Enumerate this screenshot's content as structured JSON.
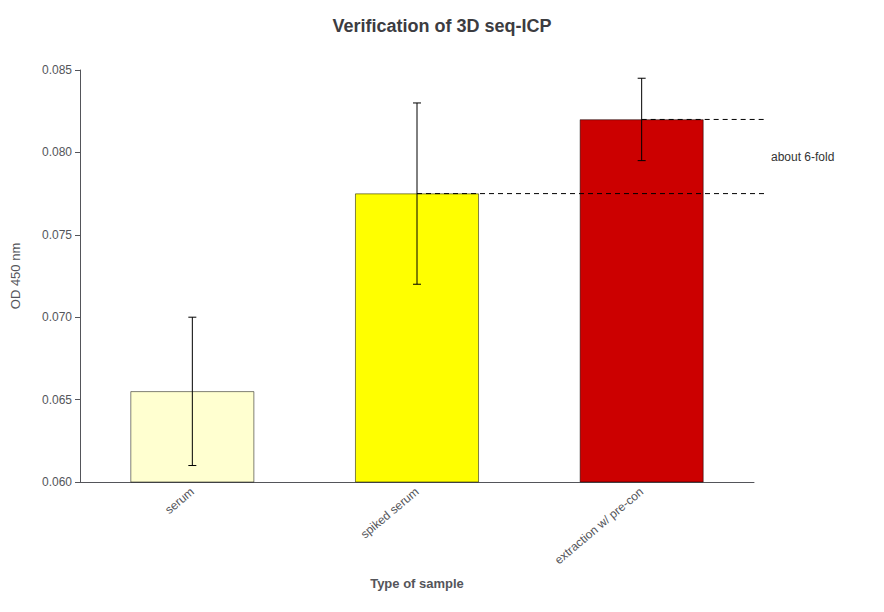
{
  "chart_data": {
    "type": "bar",
    "title": "Verification of 3D seq-ICP",
    "categories": [
      "serum",
      "spiked serum",
      "extraction w/ pre-con"
    ],
    "values": [
      0.0655,
      0.0775,
      0.082
    ],
    "errors": [
      0.0045,
      0.0055,
      0.0025
    ],
    "colors": [
      "#ffffd0",
      "#ffff00",
      "#cc0000"
    ],
    "xlabel": "Type of sample",
    "ylabel": "OD 450 nm",
    "ylim": [
      0.06,
      0.085
    ],
    "yticks": [
      {
        "value": 0.06,
        "label": "0.060"
      },
      0.065,
      {
        "value": 0.07,
        "label": "0.070"
      },
      0.075,
      {
        "value": 0.08,
        "label": "0.080"
      },
      0.085
    ],
    "grid": false,
    "annotations": [
      {
        "text": "about 6-fold",
        "y_values": [
          0.0775,
          0.082
        ]
      }
    ]
  }
}
